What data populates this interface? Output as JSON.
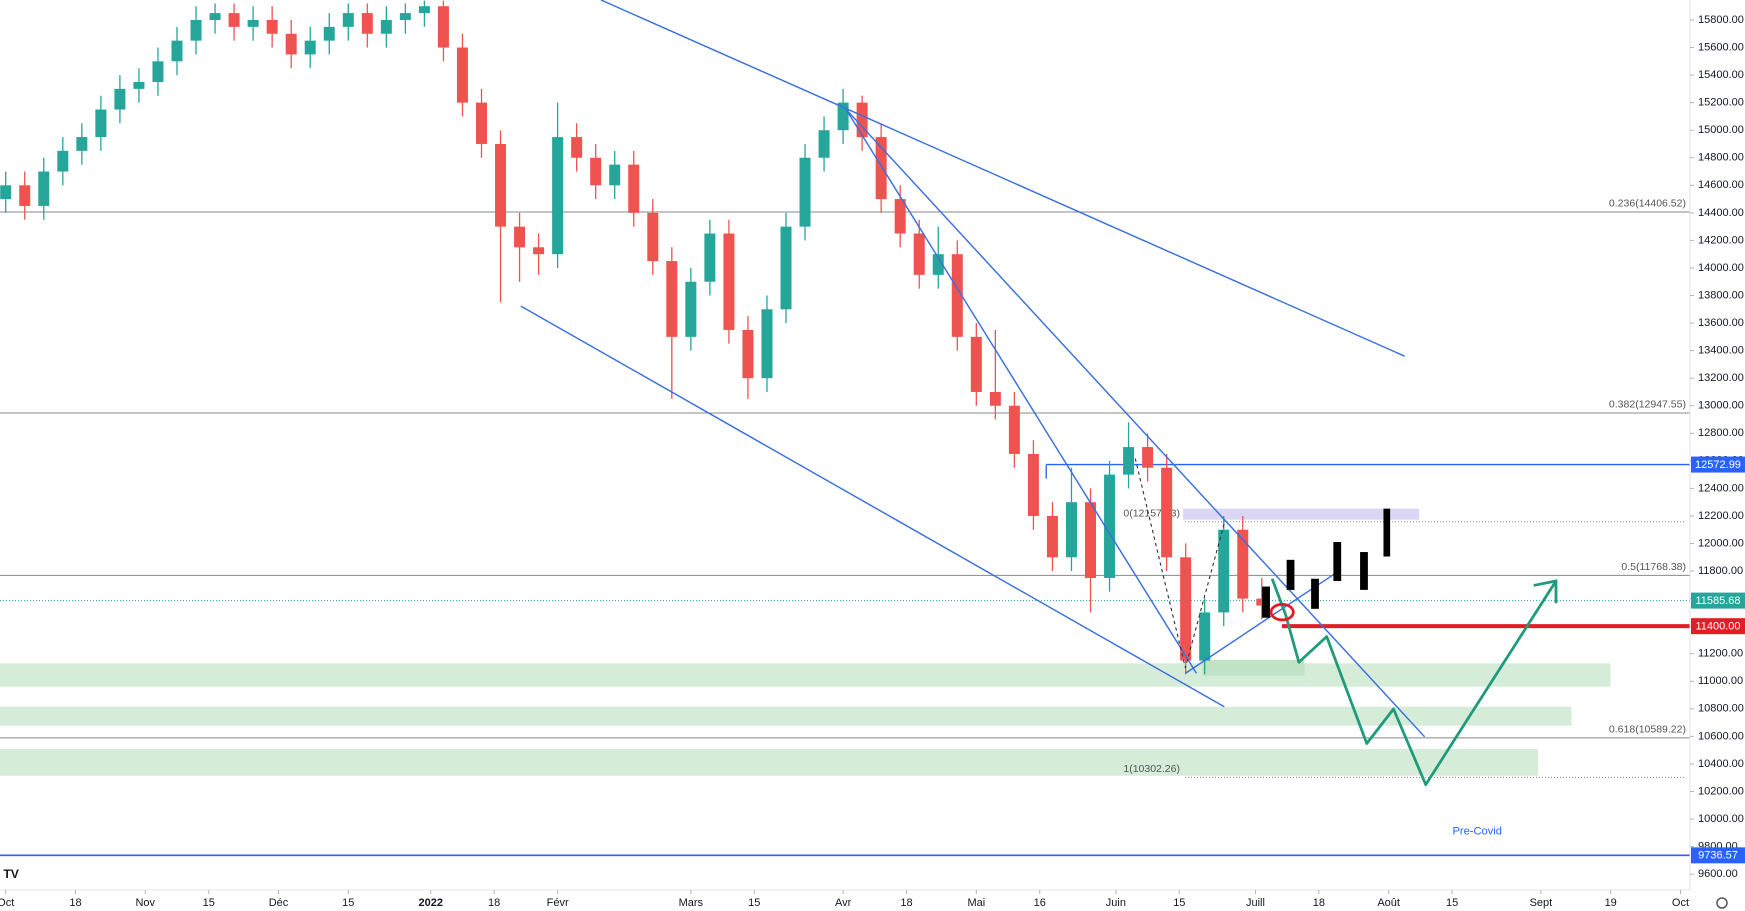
{
  "chart_data": {
    "type": "candlestick",
    "x": [
      0,
      3,
      6,
      9,
      12,
      15,
      18,
      21,
      24,
      27,
      30,
      33,
      36,
      39,
      42,
      45,
      48,
      51,
      54,
      57,
      60,
      63,
      66,
      69,
      72,
      75,
      78,
      81,
      84,
      87,
      90,
      93,
      96,
      99,
      102,
      105,
      108,
      111,
      114,
      117,
      120,
      123,
      126,
      129,
      132,
      135,
      138,
      141,
      144,
      147,
      150,
      153,
      156,
      159,
      162,
      165,
      168,
      171,
      174,
      177,
      180,
      183,
      186,
      189,
      192,
      195,
      198
    ],
    "open": [
      14500,
      14600,
      14450,
      14700,
      14850,
      14950,
      15150,
      15300,
      15350,
      15500,
      15650,
      15800,
      15850,
      15750,
      15800,
      15700,
      15550,
      15650,
      15750,
      15850,
      15700,
      15800,
      15850,
      15900,
      15600,
      15200,
      14900,
      14300,
      14150,
      14100,
      14950,
      14800,
      14600,
      14750,
      14400,
      14050,
      13500,
      13900,
      14250,
      13550,
      13200,
      13700,
      14300,
      14800,
      15000,
      15200,
      14950,
      14500,
      14250,
      13950,
      14100,
      13500,
      13100,
      13000,
      12650,
      12200,
      11900,
      12300,
      11750,
      12500,
      12700,
      12550,
      11900,
      11150,
      11500,
      12100,
      11600
    ],
    "high": [
      14700,
      14700,
      14800,
      14950,
      15050,
      15250,
      15400,
      15450,
      15600,
      15750,
      15900,
      15920,
      15920,
      15900,
      15900,
      15800,
      15750,
      15850,
      15920,
      15920,
      15900,
      15920,
      15940,
      15940,
      15700,
      15300,
      15000,
      14400,
      14250,
      15200,
      15050,
      14900,
      14850,
      14850,
      14500,
      14150,
      14000,
      14350,
      14350,
      13650,
      13800,
      14400,
      14900,
      15100,
      15300,
      15250,
      15050,
      14600,
      14350,
      14300,
      14200,
      13600,
      13550,
      13100,
      12750,
      12300,
      12550,
      12400,
      12600,
      12880,
      12800,
      12650,
      12000,
      11600,
      12200,
      12200,
      11750
    ],
    "low": [
      14400,
      14350,
      14350,
      14600,
      14750,
      14850,
      15050,
      15200,
      15250,
      15400,
      15550,
      15700,
      15650,
      15650,
      15600,
      15450,
      15450,
      15550,
      15650,
      15600,
      15600,
      15700,
      15750,
      15500,
      15100,
      14800,
      13750,
      13900,
      13950,
      14000,
      14700,
      14500,
      14500,
      14300,
      13950,
      13050,
      13400,
      13800,
      13450,
      13050,
      13100,
      13600,
      14200,
      14700,
      14900,
      14850,
      14400,
      14150,
      13850,
      13850,
      13400,
      13000,
      12900,
      12550,
      12100,
      11800,
      11800,
      11500,
      11650,
      12400,
      12450,
      11800,
      11050,
      11050,
      11400,
      11500,
      11450
    ],
    "close": [
      14600,
      14450,
      14700,
      14850,
      14950,
      15150,
      15300,
      15350,
      15500,
      15650,
      15800,
      15850,
      15750,
      15800,
      15700,
      15550,
      15650,
      15750,
      15850,
      15700,
      15800,
      15850,
      15900,
      15600,
      15200,
      14900,
      14300,
      14150,
      14100,
      14950,
      14800,
      14600,
      14750,
      14400,
      14050,
      13500,
      13900,
      14250,
      13550,
      13200,
      13700,
      14300,
      14800,
      15000,
      15200,
      14950,
      14500,
      14250,
      13950,
      14100,
      13500,
      13100,
      13000,
      12650,
      12200,
      11900,
      12300,
      11750,
      12500,
      12700,
      12550,
      11900,
      11150,
      11500,
      12100,
      11600,
      11550
    ],
    "up_color": "#26a69a",
    "down_color": "#ef5350",
    "xlim": [
      -0.9,
      265.5
    ],
    "ylim": [
      9485,
      15945
    ],
    "xticks": [
      {
        "value": 0,
        "label": "Oct"
      },
      {
        "value": 11,
        "label": "18"
      },
      {
        "value": 22,
        "label": "Nov"
      },
      {
        "value": 32,
        "label": "15"
      },
      {
        "value": 43,
        "label": "Déc"
      },
      {
        "value": 54,
        "label": "15"
      },
      {
        "value": 67,
        "label": "2022"
      },
      {
        "value": 77,
        "label": "18"
      },
      {
        "value": 87,
        "label": "Févr"
      },
      {
        "value": 108,
        "label": "Mars"
      },
      {
        "value": 118,
        "label": "15"
      },
      {
        "value": 132,
        "label": "Avr"
      },
      {
        "value": 142,
        "label": "18"
      },
      {
        "value": 153,
        "label": "Mai"
      },
      {
        "value": 163,
        "label": "16"
      },
      {
        "value": 175,
        "label": "Juin"
      },
      {
        "value": 185,
        "label": "15"
      },
      {
        "value": 197,
        "label": "Juill"
      },
      {
        "value": 207,
        "label": "18"
      },
      {
        "value": 218,
        "label": "Août"
      },
      {
        "value": 228,
        "label": "15"
      },
      {
        "value": 242,
        "label": "Sept"
      },
      {
        "value": 253,
        "label": "19"
      },
      {
        "value": 264,
        "label": "Oct"
      }
    ],
    "yticks": [
      {
        "value": 9600,
        "label": "9600.00"
      },
      {
        "value": 9800,
        "label": "9800.00"
      },
      {
        "value": 10000,
        "label": "10000.00"
      },
      {
        "value": 10200,
        "label": "10200.00"
      },
      {
        "value": 10400,
        "label": "10400.00"
      },
      {
        "value": 10600,
        "label": "10600.00"
      },
      {
        "value": 10800,
        "label": "10800.00"
      },
      {
        "value": 11000,
        "label": "11000.00"
      },
      {
        "value": 11200,
        "label": "11200.00"
      },
      {
        "value": 11400,
        "label": "11400.00"
      },
      {
        "value": 11600,
        "label": "11600.00"
      },
      {
        "value": 11800,
        "label": "11800.00"
      },
      {
        "value": 12000,
        "label": "12000.00"
      },
      {
        "value": 12200,
        "label": "12200.00"
      },
      {
        "value": 12400,
        "label": "12400.00"
      },
      {
        "value": 12600,
        "label": "12600.00"
      },
      {
        "value": 12800,
        "label": "12800.00"
      },
      {
        "value": 13000,
        "label": "13000.00"
      },
      {
        "value": 13200,
        "label": "13200.00"
      },
      {
        "value": 13400,
        "label": "13400.00"
      },
      {
        "value": 13600,
        "label": "13600.00"
      },
      {
        "value": 13800,
        "label": "13800.00"
      },
      {
        "value": 14000,
        "label": "14000.00"
      },
      {
        "value": 14200,
        "label": "14200.00"
      },
      {
        "value": 14400,
        "label": "14400.00"
      },
      {
        "value": 14600,
        "label": "14600.00"
      },
      {
        "value": 14800,
        "label": "14800.00"
      },
      {
        "value": 15000,
        "label": "15000.00"
      },
      {
        "value": 15200,
        "label": "15200.00"
      },
      {
        "value": 15400,
        "label": "15400.00"
      },
      {
        "value": 15600,
        "label": "15600.00"
      },
      {
        "value": 15800,
        "label": "15800.00"
      }
    ],
    "fib_levels": [
      {
        "value": 14406.52,
        "label": "0.236(14406.52)"
      },
      {
        "value": 12947.55,
        "label": "0.382(12947.55)"
      },
      {
        "value": 11768.38,
        "label": "0.5(11768.38)"
      },
      {
        "value": 10589.22,
        "label": "0.618(10589.22)"
      },
      {
        "value": 12157.93,
        "label": "0(12157.93)"
      },
      {
        "value": 10302.26,
        "label": "1(10302.26)"
      }
    ],
    "price_tags": [
      {
        "value": 12572.99,
        "label": "12572.99",
        "color": "#2962ff"
      },
      {
        "value": 11585.68,
        "label": "11585.68",
        "color": "#26a69a"
      },
      {
        "value": 11400,
        "label": "11400.00",
        "color": "#e01e26"
      },
      {
        "value": 9736.57,
        "label": "9736.57",
        "color": "#2962ff"
      }
    ],
    "annotation": "Pre-Covid"
  }
}
